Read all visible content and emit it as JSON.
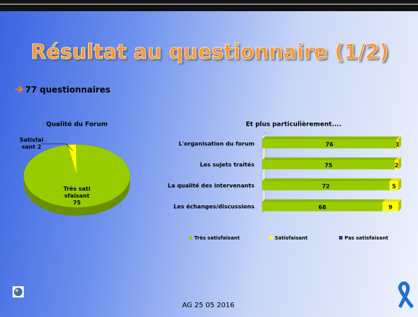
{
  "slide_title": "Résultat au questionnaire (1/2)",
  "subtitle": "77 questionnaires",
  "footer": "AG 25 05 2016",
  "chart_data": [
    {
      "type": "pie",
      "title": "Qualité du Forum",
      "categories": [
        "Satisfaisant",
        "Très satisfaisant"
      ],
      "values": [
        2,
        75
      ],
      "colors": [
        "#ffff00",
        "#99cc00"
      ]
    },
    {
      "type": "bar",
      "orientation": "horizontal",
      "stacked": true,
      "title": "Et plus particulièrement....",
      "categories": [
        "L'organisation du forum",
        "Les sujets traités",
        "La qualité des intervenants",
        "Les échanges/discussions"
      ],
      "series": [
        {
          "name": "Très satisfaisant",
          "color": "#99cc00",
          "values": [
            76,
            75,
            72,
            68
          ]
        },
        {
          "name": "Satisfaisant",
          "color": "#ffff00",
          "values": [
            1,
            2,
            5,
            9
          ]
        },
        {
          "name": "Pas satisfaisant",
          "color": "#333399",
          "values": [
            0,
            0,
            0,
            0
          ]
        }
      ],
      "xlim": [
        0,
        77
      ],
      "legend": "bottom"
    }
  ]
}
